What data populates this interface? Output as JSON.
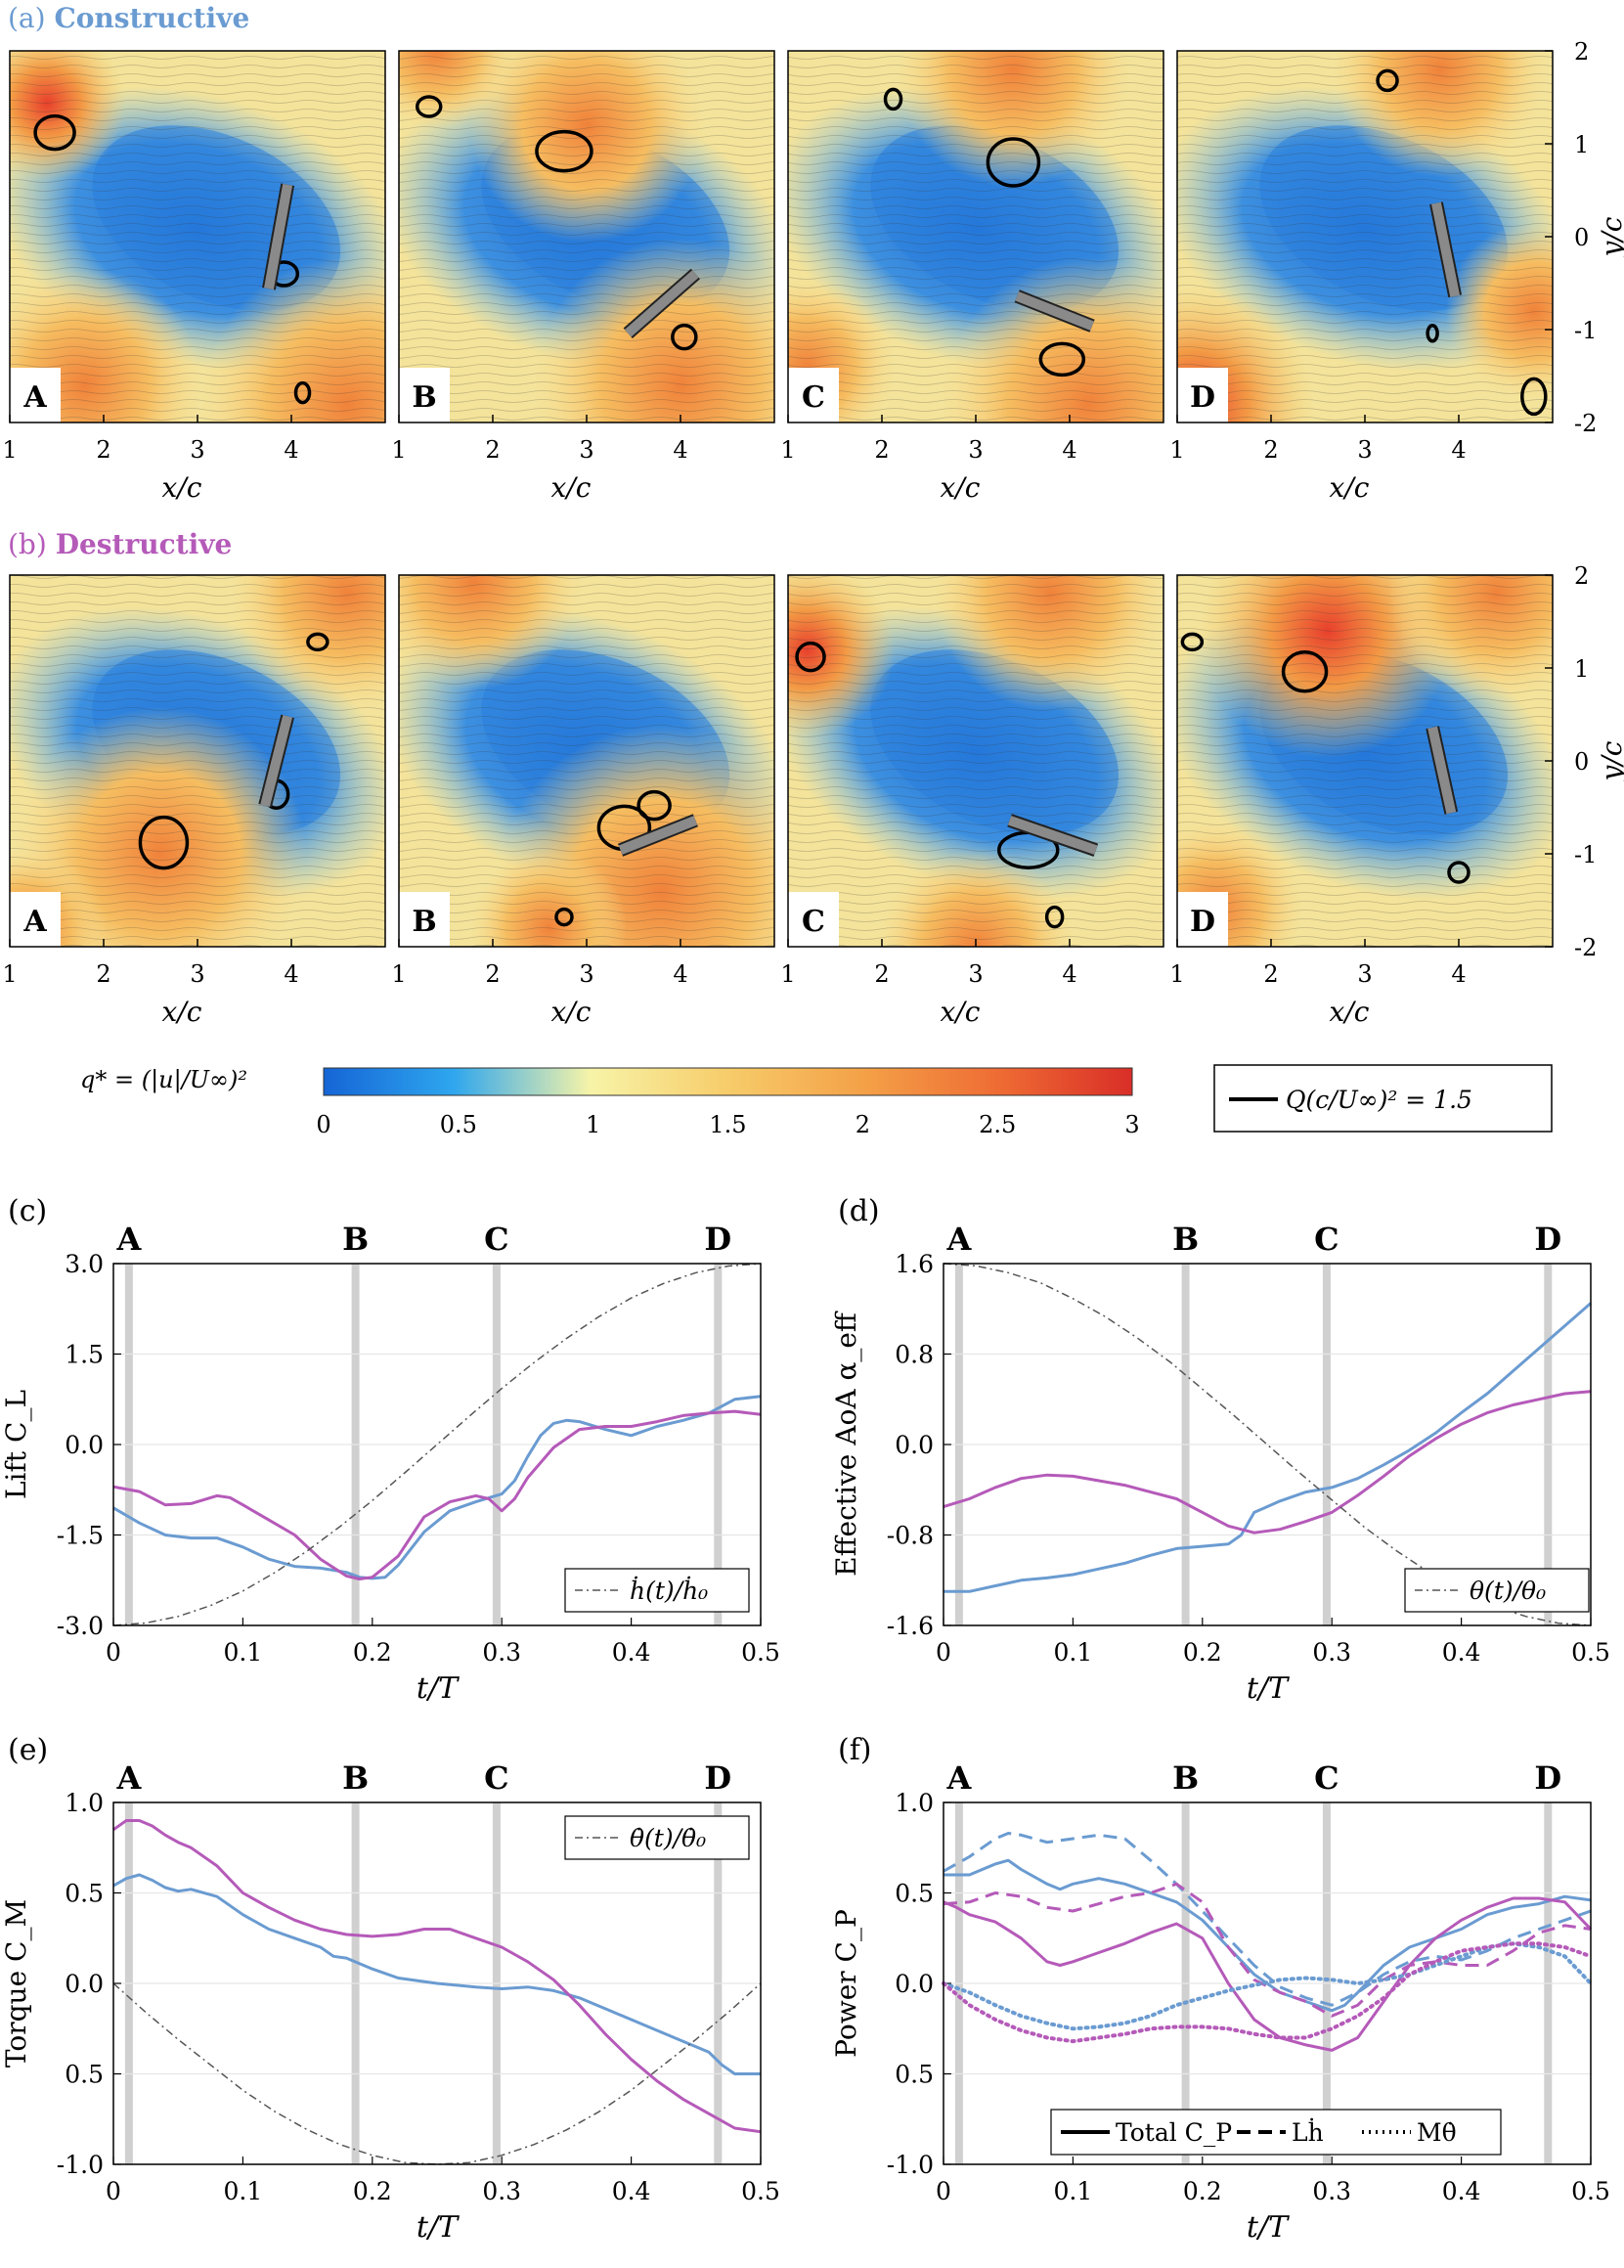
{
  "colors": {
    "constructive": "#6a9bd1",
    "destructive": "#b55ab9",
    "reference": "#555555",
    "band": "#d0d0d0",
    "grid": "#e6e6e6"
  },
  "flow": {
    "rowA": {
      "prefix": "(a)",
      "title": "Constructive"
    },
    "rowB": {
      "prefix": "(b)",
      "title": "Destructive"
    },
    "panel_letters": [
      "A",
      "B",
      "C",
      "D"
    ],
    "x_ticks": [
      "1",
      "2",
      "3",
      "4"
    ],
    "x_label": "x/c",
    "y_ticks": [
      "2",
      "1",
      "0",
      "-1",
      "-2"
    ],
    "y_label": "y/c",
    "colorbar_label": "q* = (|u|/U∞)²",
    "colorbar_ticks": [
      "0",
      "0.5",
      "1",
      "1.5",
      "2",
      "2.5",
      "3"
    ],
    "q_legend": "Q(c/U∞)² = 1.5"
  },
  "markers": {
    "labels": [
      "A",
      "B",
      "C",
      "D"
    ],
    "t": [
      0.012,
      0.187,
      0.296,
      0.467
    ]
  },
  "chart_data": [
    {
      "id": "c",
      "panel": "(c)",
      "type": "line",
      "ylabel": "Lift C_L",
      "xlabel": "t/T",
      "xlim": [
        0,
        0.5
      ],
      "ylim": [
        -3,
        3
      ],
      "xticks": [
        "0",
        "0.1",
        "0.2",
        "0.3",
        "0.4",
        "0.5"
      ],
      "yticks": [
        "3.0",
        "1.5",
        "0.0",
        "-1.5",
        "-3.0"
      ],
      "legend": "ḣ(t)/ḣ₀",
      "series": [
        {
          "name": "constructive",
          "style": "solid",
          "x": [
            0,
            0.02,
            0.04,
            0.06,
            0.08,
            0.1,
            0.12,
            0.14,
            0.16,
            0.18,
            0.19,
            0.2,
            0.21,
            0.22,
            0.24,
            0.26,
            0.28,
            0.3,
            0.31,
            0.32,
            0.33,
            0.34,
            0.35,
            0.36,
            0.38,
            0.4,
            0.42,
            0.44,
            0.46,
            0.48,
            0.5
          ],
          "y": [
            -1.05,
            -1.3,
            -1.5,
            -1.55,
            -1.55,
            -1.7,
            -1.9,
            -2.02,
            -2.05,
            -2.12,
            -2.2,
            -2.22,
            -2.2,
            -2.0,
            -1.45,
            -1.1,
            -0.95,
            -0.82,
            -0.6,
            -0.2,
            0.15,
            0.35,
            0.4,
            0.38,
            0.25,
            0.15,
            0.3,
            0.4,
            0.52,
            0.75,
            0.8
          ]
        },
        {
          "name": "destructive",
          "style": "solid",
          "x": [
            0,
            0.02,
            0.04,
            0.06,
            0.08,
            0.09,
            0.1,
            0.12,
            0.14,
            0.16,
            0.18,
            0.19,
            0.2,
            0.22,
            0.24,
            0.26,
            0.28,
            0.29,
            0.3,
            0.31,
            0.32,
            0.34,
            0.36,
            0.38,
            0.4,
            0.42,
            0.44,
            0.46,
            0.48,
            0.5
          ],
          "y": [
            -0.7,
            -0.78,
            -1.0,
            -0.98,
            -0.85,
            -0.88,
            -1.0,
            -1.25,
            -1.5,
            -1.9,
            -2.18,
            -2.23,
            -2.2,
            -1.85,
            -1.2,
            -0.95,
            -0.85,
            -0.9,
            -1.1,
            -0.9,
            -0.55,
            -0.05,
            0.25,
            0.3,
            0.3,
            0.38,
            0.48,
            0.52,
            0.55,
            0.5
          ]
        },
        {
          "name": "ḣ(t)/ḣ₀",
          "style": "dashdot",
          "x": [
            0,
            0.025,
            0.05,
            0.075,
            0.1,
            0.125,
            0.15,
            0.175,
            0.2,
            0.225,
            0.25,
            0.275,
            0.3,
            0.325,
            0.35,
            0.375,
            0.4,
            0.425,
            0.45,
            0.475,
            0.5
          ],
          "y": [
            -3,
            -2.96,
            -2.85,
            -2.67,
            -2.43,
            -2.12,
            -1.76,
            -1.36,
            -0.93,
            -0.47,
            0,
            0.47,
            0.93,
            1.36,
            1.76,
            2.12,
            2.43,
            2.67,
            2.85,
            2.96,
            3
          ]
        }
      ]
    },
    {
      "id": "d",
      "panel": "(d)",
      "type": "line",
      "ylabel": "Effective AoA α_eff",
      "xlabel": "t/T",
      "xlim": [
        0,
        0.5
      ],
      "ylim": [
        -1.6,
        1.6
      ],
      "xticks": [
        "0",
        "0.1",
        "0.2",
        "0.3",
        "0.4",
        "0.5"
      ],
      "yticks": [
        "1.6",
        "0.8",
        "0.0",
        "-0.8",
        "-1.6"
      ],
      "legend": "θ(t)/θ₀",
      "series": [
        {
          "name": "constructive",
          "style": "solid",
          "x": [
            0,
            0.02,
            0.04,
            0.06,
            0.08,
            0.1,
            0.12,
            0.14,
            0.16,
            0.18,
            0.2,
            0.22,
            0.23,
            0.24,
            0.25,
            0.26,
            0.28,
            0.3,
            0.32,
            0.34,
            0.36,
            0.38,
            0.4,
            0.42,
            0.44,
            0.46,
            0.48,
            0.5
          ],
          "y": [
            -1.3,
            -1.3,
            -1.25,
            -1.2,
            -1.18,
            -1.15,
            -1.1,
            -1.05,
            -0.98,
            -0.92,
            -0.9,
            -0.88,
            -0.8,
            -0.6,
            -0.55,
            -0.5,
            -0.42,
            -0.38,
            -0.3,
            -0.18,
            -0.05,
            0.1,
            0.28,
            0.45,
            0.65,
            0.85,
            1.05,
            1.25
          ]
        },
        {
          "name": "destructive",
          "style": "solid",
          "x": [
            0,
            0.02,
            0.04,
            0.06,
            0.08,
            0.1,
            0.12,
            0.14,
            0.16,
            0.18,
            0.2,
            0.22,
            0.24,
            0.26,
            0.28,
            0.3,
            0.32,
            0.34,
            0.36,
            0.38,
            0.4,
            0.42,
            0.44,
            0.46,
            0.48,
            0.5
          ],
          "y": [
            -0.55,
            -0.48,
            -0.38,
            -0.3,
            -0.27,
            -0.28,
            -0.32,
            -0.36,
            -0.42,
            -0.48,
            -0.6,
            -0.72,
            -0.78,
            -0.75,
            -0.68,
            -0.6,
            -0.45,
            -0.28,
            -0.1,
            0.05,
            0.18,
            0.28,
            0.35,
            0.4,
            0.45,
            0.47
          ]
        },
        {
          "name": "θ(t)/θ₀",
          "style": "dashdot",
          "x": [
            0,
            0.025,
            0.05,
            0.075,
            0.1,
            0.125,
            0.15,
            0.175,
            0.2,
            0.225,
            0.25,
            0.275,
            0.3,
            0.325,
            0.35,
            0.375,
            0.4,
            0.425,
            0.45,
            0.475,
            0.5
          ],
          "y": [
            1.6,
            1.58,
            1.52,
            1.43,
            1.29,
            1.13,
            0.94,
            0.73,
            0.49,
            0.25,
            0,
            -0.25,
            -0.49,
            -0.73,
            -0.94,
            -1.13,
            -1.29,
            -1.43,
            -1.52,
            -1.58,
            -1.6
          ]
        }
      ]
    },
    {
      "id": "e",
      "panel": "(e)",
      "type": "line",
      "ylabel": "Torque C_M",
      "xlabel": "t/T",
      "xlim": [
        0,
        0.5
      ],
      "ylim": [
        -1,
        1
      ],
      "xticks": [
        "0",
        "0.1",
        "0.2",
        "0.3",
        "0.4",
        "0.5"
      ],
      "yticks": [
        "1.0",
        "0.5",
        "0.0",
        "0.5",
        "-1.0"
      ],
      "legend": "θ̇(t)/θ̇₀",
      "series": [
        {
          "name": "constructive",
          "style": "solid",
          "x": [
            0,
            0.01,
            0.02,
            0.03,
            0.04,
            0.05,
            0.06,
            0.08,
            0.1,
            0.12,
            0.14,
            0.16,
            0.17,
            0.18,
            0.2,
            0.22,
            0.25,
            0.28,
            0.3,
            0.32,
            0.34,
            0.36,
            0.38,
            0.4,
            0.42,
            0.44,
            0.46,
            0.47,
            0.48,
            0.5
          ],
          "y": [
            0.54,
            0.58,
            0.6,
            0.57,
            0.53,
            0.51,
            0.52,
            0.48,
            0.38,
            0.3,
            0.25,
            0.2,
            0.15,
            0.14,
            0.08,
            0.03,
            0,
            -0.02,
            -0.03,
            -0.02,
            -0.04,
            -0.08,
            -0.14,
            -0.2,
            -0.26,
            -0.32,
            -0.38,
            -0.45,
            -0.5,
            -0.5
          ]
        },
        {
          "name": "destructive",
          "style": "solid",
          "x": [
            0,
            0.01,
            0.02,
            0.03,
            0.04,
            0.05,
            0.06,
            0.08,
            0.1,
            0.12,
            0.14,
            0.16,
            0.18,
            0.2,
            0.22,
            0.24,
            0.26,
            0.28,
            0.3,
            0.32,
            0.34,
            0.36,
            0.38,
            0.4,
            0.42,
            0.44,
            0.46,
            0.48,
            0.5
          ],
          "y": [
            0.85,
            0.9,
            0.9,
            0.87,
            0.82,
            0.78,
            0.75,
            0.65,
            0.5,
            0.42,
            0.35,
            0.3,
            0.27,
            0.26,
            0.27,
            0.3,
            0.3,
            0.25,
            0.2,
            0.12,
            0.02,
            -0.12,
            -0.28,
            -0.42,
            -0.54,
            -0.64,
            -0.72,
            -0.8,
            -0.82
          ]
        },
        {
          "name": "θ̇(t)/θ̇₀",
          "style": "dashdot",
          "x": [
            0,
            0.025,
            0.05,
            0.075,
            0.1,
            0.125,
            0.15,
            0.175,
            0.2,
            0.225,
            0.25,
            0.275,
            0.3,
            0.325,
            0.35,
            0.375,
            0.4,
            0.425,
            0.45,
            0.475,
            0.5
          ],
          "y": [
            0,
            -0.16,
            -0.31,
            -0.45,
            -0.59,
            -0.71,
            -0.81,
            -0.89,
            -0.95,
            -0.99,
            -1.0,
            -0.99,
            -0.95,
            -0.89,
            -0.81,
            -0.71,
            -0.59,
            -0.45,
            -0.31,
            -0.16,
            0
          ]
        }
      ]
    },
    {
      "id": "f",
      "panel": "(f)",
      "type": "line",
      "ylabel": "Power C_P",
      "xlabel": "t/T",
      "xlim": [
        0,
        0.5
      ],
      "ylim": [
        -1,
        1
      ],
      "xticks": [
        "0",
        "0.1",
        "0.2",
        "0.3",
        "0.4",
        "0.5"
      ],
      "yticks": [
        "1.0",
        "0.5",
        "0.0",
        "0.5",
        "-1.0"
      ],
      "legend_items": [
        "Total C_P",
        "Lḣ",
        "Mθ̇"
      ],
      "series": [
        {
          "name": "constructive total",
          "group": "constructive",
          "style": "solid",
          "x": [
            0,
            0.02,
            0.04,
            0.05,
            0.06,
            0.08,
            0.09,
            0.1,
            0.12,
            0.14,
            0.16,
            0.18,
            0.2,
            0.22,
            0.24,
            0.26,
            0.28,
            0.3,
            0.31,
            0.32,
            0.34,
            0.36,
            0.38,
            0.4,
            0.42,
            0.44,
            0.46,
            0.48,
            0.5
          ],
          "y": [
            0.6,
            0.6,
            0.66,
            0.68,
            0.63,
            0.55,
            0.52,
            0.55,
            0.58,
            0.55,
            0.5,
            0.45,
            0.35,
            0.2,
            0.05,
            -0.05,
            -0.1,
            -0.15,
            -0.12,
            -0.05,
            0.1,
            0.2,
            0.25,
            0.3,
            0.38,
            0.42,
            0.44,
            0.48,
            0.46
          ]
        },
        {
          "name": "destructive total",
          "group": "destructive",
          "style": "solid",
          "x": [
            0,
            0.01,
            0.02,
            0.04,
            0.06,
            0.08,
            0.09,
            0.1,
            0.12,
            0.14,
            0.16,
            0.18,
            0.2,
            0.22,
            0.24,
            0.26,
            0.28,
            0.3,
            0.32,
            0.34,
            0.36,
            0.38,
            0.4,
            0.42,
            0.44,
            0.46,
            0.48,
            0.5
          ],
          "y": [
            0.45,
            0.42,
            0.38,
            0.34,
            0.25,
            0.12,
            0.1,
            0.12,
            0.17,
            0.22,
            0.28,
            0.33,
            0.25,
            0.0,
            -0.2,
            -0.3,
            -0.34,
            -0.37,
            -0.3,
            -0.1,
            0.1,
            0.25,
            0.35,
            0.42,
            0.47,
            0.47,
            0.45,
            0.3
          ]
        },
        {
          "name": "constructive Lḣ",
          "group": "constructive",
          "style": "dashed",
          "x": [
            0,
            0.02,
            0.04,
            0.05,
            0.06,
            0.08,
            0.1,
            0.12,
            0.14,
            0.16,
            0.18,
            0.2,
            0.22,
            0.24,
            0.26,
            0.28,
            0.3,
            0.32,
            0.34,
            0.36,
            0.38,
            0.4,
            0.42,
            0.44,
            0.46,
            0.48,
            0.5
          ],
          "y": [
            0.62,
            0.7,
            0.8,
            0.83,
            0.82,
            0.78,
            0.8,
            0.82,
            0.8,
            0.68,
            0.55,
            0.4,
            0.25,
            0.1,
            -0.02,
            -0.08,
            -0.12,
            -0.05,
            0.05,
            0.12,
            0.15,
            0.13,
            0.18,
            0.25,
            0.3,
            0.35,
            0.4
          ]
        },
        {
          "name": "destructive Lḣ",
          "group": "destructive",
          "style": "dashed",
          "x": [
            0,
            0.02,
            0.04,
            0.06,
            0.08,
            0.1,
            0.12,
            0.14,
            0.16,
            0.18,
            0.2,
            0.22,
            0.24,
            0.26,
            0.28,
            0.3,
            0.32,
            0.34,
            0.36,
            0.38,
            0.4,
            0.42,
            0.44,
            0.46,
            0.48,
            0.5
          ],
          "y": [
            0.44,
            0.45,
            0.5,
            0.48,
            0.42,
            0.4,
            0.44,
            0.48,
            0.5,
            0.55,
            0.45,
            0.2,
            0.02,
            -0.05,
            -0.1,
            -0.18,
            -0.12,
            0.02,
            0.1,
            0.12,
            0.1,
            0.1,
            0.18,
            0.28,
            0.32,
            0.3
          ]
        },
        {
          "name": "constructive Mθ̇",
          "group": "constructive",
          "style": "dotted",
          "x": [
            0,
            0.02,
            0.04,
            0.06,
            0.08,
            0.1,
            0.12,
            0.14,
            0.16,
            0.18,
            0.2,
            0.22,
            0.24,
            0.26,
            0.28,
            0.3,
            0.32,
            0.34,
            0.36,
            0.38,
            0.4,
            0.42,
            0.44,
            0.46,
            0.48,
            0.5
          ],
          "y": [
            0,
            -0.05,
            -0.12,
            -0.18,
            -0.22,
            -0.25,
            -0.24,
            -0.22,
            -0.18,
            -0.12,
            -0.08,
            -0.04,
            -0.01,
            0.02,
            0.03,
            0.02,
            0.0,
            0.02,
            0.05,
            0.1,
            0.15,
            0.2,
            0.22,
            0.2,
            0.15,
            0.0
          ]
        },
        {
          "name": "destructive Mθ̇",
          "group": "destructive",
          "style": "dotted",
          "x": [
            0,
            0.02,
            0.04,
            0.06,
            0.08,
            0.1,
            0.12,
            0.14,
            0.16,
            0.18,
            0.2,
            0.22,
            0.24,
            0.26,
            0.28,
            0.3,
            0.32,
            0.34,
            0.36,
            0.38,
            0.4,
            0.42,
            0.44,
            0.46,
            0.48,
            0.5
          ],
          "y": [
            0,
            -0.12,
            -0.2,
            -0.26,
            -0.3,
            -0.32,
            -0.3,
            -0.28,
            -0.25,
            -0.24,
            -0.24,
            -0.25,
            -0.28,
            -0.3,
            -0.3,
            -0.25,
            -0.18,
            -0.08,
            0.05,
            0.12,
            0.18,
            0.2,
            0.22,
            0.22,
            0.2,
            0.15
          ]
        }
      ]
    }
  ]
}
